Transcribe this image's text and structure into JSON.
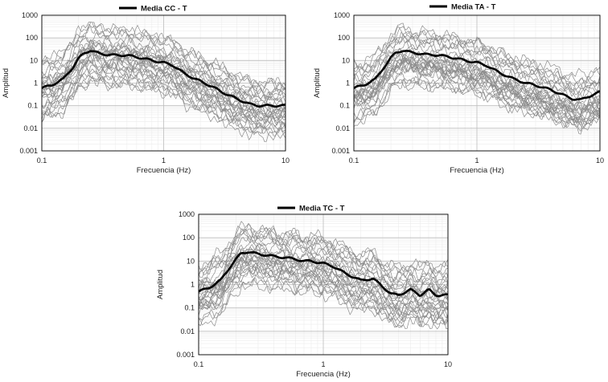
{
  "chart_data": [
    {
      "type": "line",
      "legend": "Media CC - T",
      "xlabel": "Frecuencia (Hz)",
      "ylabel": "Amplitud",
      "xscale": "log",
      "yscale": "log",
      "xlim": [
        0.1,
        10
      ],
      "ylim": [
        0.001,
        1000
      ],
      "x_ticks": [
        "0.1",
        "1",
        "10"
      ],
      "y_ticks": [
        "0.001",
        "0.01",
        "0.1",
        "1",
        "10",
        "100",
        "1000"
      ],
      "legend_position": "top-left",
      "mean": {
        "name": "Media CC - T",
        "x": [
          0.1,
          0.12,
          0.15,
          0.18,
          0.2,
          0.22,
          0.25,
          0.3,
          0.35,
          0.4,
          0.5,
          0.6,
          0.7,
          0.8,
          1.0,
          1.2,
          1.5,
          2.0,
          2.5,
          3.0,
          4.0,
          5.0,
          6.0,
          7.0,
          8.0,
          10.0
        ],
        "y": [
          0.6,
          0.8,
          1.5,
          5,
          12,
          20,
          28,
          20,
          18,
          17,
          17,
          14,
          12,
          10,
          8,
          6,
          2.5,
          1.2,
          0.7,
          0.4,
          0.2,
          0.12,
          0.1,
          0.1,
          0.1,
          0.1
        ]
      },
      "individual_records": {
        "count": 30,
        "series_label": "",
        "spread_low_factor": 0.05,
        "spread_high_factor": 12
      }
    },
    {
      "type": "line",
      "legend": "Media TA - T",
      "xlabel": "Frecuencia (Hz)",
      "ylabel": "Amplitud",
      "xscale": "log",
      "yscale": "log",
      "xlim": [
        0.1,
        10
      ],
      "ylim": [
        0.001,
        1000
      ],
      "x_ticks": [
        "0.1",
        "1",
        "10"
      ],
      "y_ticks": [
        "0.001",
        "0.01",
        "0.1",
        "1",
        "10",
        "100",
        "1000"
      ],
      "legend_position": "top-left",
      "mean": {
        "name": "Media TA - T",
        "x": [
          0.1,
          0.12,
          0.15,
          0.18,
          0.2,
          0.22,
          0.25,
          0.3,
          0.35,
          0.4,
          0.5,
          0.6,
          0.7,
          0.8,
          1.0,
          1.2,
          1.5,
          2.0,
          2.5,
          3.0,
          4.0,
          5.0,
          6.0,
          7.0,
          8.0,
          10.0
        ],
        "y": [
          0.6,
          0.8,
          1.5,
          6,
          13,
          22,
          28,
          22,
          20,
          18,
          17,
          14,
          12,
          10,
          8,
          6,
          3,
          1.5,
          1,
          0.8,
          0.5,
          0.3,
          0.2,
          0.18,
          0.25,
          0.4
        ]
      },
      "individual_records": {
        "count": 30,
        "series_label": "",
        "spread_low_factor": 0.05,
        "spread_high_factor": 12
      }
    },
    {
      "type": "line",
      "legend": "Media TC - T",
      "xlabel": "Frecuencia (Hz)",
      "ylabel": "Amplitud",
      "xscale": "log",
      "yscale": "log",
      "xlim": [
        0.1,
        10
      ],
      "ylim": [
        0.001,
        1000
      ],
      "x_ticks": [
        "0.1",
        "1",
        "10"
      ],
      "y_ticks": [
        "0.001",
        "0.01",
        "0.1",
        "1",
        "10",
        "100",
        "1000"
      ],
      "legend_position": "top-left",
      "mean": {
        "name": "Media TC - T",
        "x": [
          0.1,
          0.12,
          0.15,
          0.18,
          0.2,
          0.22,
          0.25,
          0.3,
          0.35,
          0.4,
          0.5,
          0.6,
          0.7,
          0.8,
          1.0,
          1.2,
          1.5,
          2.0,
          2.5,
          3.0,
          3.5,
          4.0,
          5.0,
          6.0,
          7.0,
          8.0,
          10.0
        ],
        "y": [
          0.5,
          0.7,
          1.5,
          6,
          12,
          22,
          25,
          20,
          18,
          16,
          14,
          12,
          10,
          10,
          8,
          6,
          3,
          1.5,
          1.8,
          0.8,
          0.4,
          0.35,
          0.6,
          0.35,
          0.6,
          0.35,
          0.35
        ]
      },
      "individual_records": {
        "count": 30,
        "series_label": "",
        "spread_low_factor": 0.05,
        "spread_high_factor": 12
      }
    }
  ]
}
